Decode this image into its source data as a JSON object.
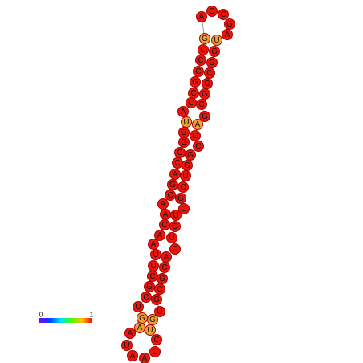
{
  "colorbar": {
    "min_label": "0",
    "max_label": "1"
  },
  "nodes": [
    {
      "label": "U",
      "color": "#e8160c"
    },
    {
      "label": "A",
      "color": "#e8160c"
    },
    {
      "label": "A",
      "color": "#f0a030"
    },
    {
      "label": "G",
      "color": "#f0a030"
    },
    {
      "label": "U",
      "color": "#e8160c"
    },
    {
      "label": "C",
      "color": "#e8160c"
    },
    {
      "label": "G",
      "color": "#e8160c"
    },
    {
      "label": "C",
      "color": "#e8160c"
    },
    {
      "label": "U",
      "color": "#e8160c"
    },
    {
      "label": "U",
      "color": "#e8160c"
    },
    {
      "label": "A",
      "color": "#e8160c"
    },
    {
      "label": "A",
      "color": "#e8160c"
    },
    {
      "label": "C",
      "color": "#e8160c"
    },
    {
      "label": "A",
      "color": "#e8160c"
    },
    {
      "label": "A",
      "color": "#e8160c"
    },
    {
      "label": "C",
      "color": "#e8160c"
    },
    {
      "label": "G",
      "color": "#e8160c"
    },
    {
      "label": "A",
      "color": "#e8160c"
    },
    {
      "label": "C",
      "color": "#e8160c"
    },
    {
      "label": "C",
      "color": "#e8160c"
    },
    {
      "label": "G",
      "color": "#e8160c"
    },
    {
      "label": "G",
      "color": "#e8160c"
    },
    {
      "label": "U",
      "color": "#f0a030"
    },
    {
      "label": "A",
      "color": "#e8160c"
    },
    {
      "label": "C",
      "color": "#e8160c"
    },
    {
      "label": "C",
      "color": "#e8160c"
    },
    {
      "label": "G",
      "color": "#e8160c"
    },
    {
      "label": "C",
      "color": "#e8160c"
    },
    {
      "label": "C",
      "color": "#e8160c"
    },
    {
      "label": "C",
      "color": "#e8160c"
    },
    {
      "label": "G",
      "color": "#f0a030"
    },
    {
      "label": "A",
      "color": "#e8160c"
    },
    {
      "label": "C",
      "color": "#e8160c"
    },
    {
      "label": "C",
      "color": "#e8160c"
    },
    {
      "label": "G",
      "color": "#e8160c"
    },
    {
      "label": "A",
      "color": "#e8160c"
    },
    {
      "label": "U",
      "color": "#f0a030"
    },
    {
      "label": "G",
      "color": "#e8160c"
    },
    {
      "label": "G",
      "color": "#e8160c"
    },
    {
      "label": "C",
      "color": "#e8160c"
    },
    {
      "label": "G",
      "color": "#e8160c"
    },
    {
      "label": "G",
      "color": "#e8160c"
    },
    {
      "label": "C",
      "color": "#e8160c"
    },
    {
      "label": "G",
      "color": "#e8160c"
    },
    {
      "label": "A",
      "color": "#f0a030"
    },
    {
      "label": "C",
      "color": "#e8160c"
    },
    {
      "label": "C",
      "color": "#e8160c"
    },
    {
      "label": "G",
      "color": "#e8160c"
    },
    {
      "label": "G",
      "color": "#e8160c"
    },
    {
      "label": "U",
      "color": "#e8160c"
    },
    {
      "label": "C",
      "color": "#e8160c"
    },
    {
      "label": "G",
      "color": "#e8160c"
    },
    {
      "label": "C",
      "color": "#e8160c"
    },
    {
      "label": "U",
      "color": "#e8160c"
    },
    {
      "label": "G",
      "color": "#e8160c"
    },
    {
      "label": "U",
      "color": "#e8160c"
    },
    {
      "label": "C",
      "color": "#e8160c"
    },
    {
      "label": "A",
      "color": "#e8160c"
    },
    {
      "label": "C",
      "color": "#e8160c"
    },
    {
      "label": "G",
      "color": "#e8160c"
    },
    {
      "label": "C",
      "color": "#e8160c"
    },
    {
      "label": "G",
      "color": "#e8160c"
    },
    {
      "label": "U",
      "color": "#e8160c"
    },
    {
      "label": "G",
      "color": "#f0a030"
    },
    {
      "label": "U",
      "color": "#f0a030"
    },
    {
      "label": "C",
      "color": "#e8160c"
    },
    {
      "label": "C",
      "color": "#e8160c"
    },
    {
      "label": "A",
      "color": "#e8160c"
    },
    {
      "label": "A",
      "color": "#e8160c"
    }
  ]
}
